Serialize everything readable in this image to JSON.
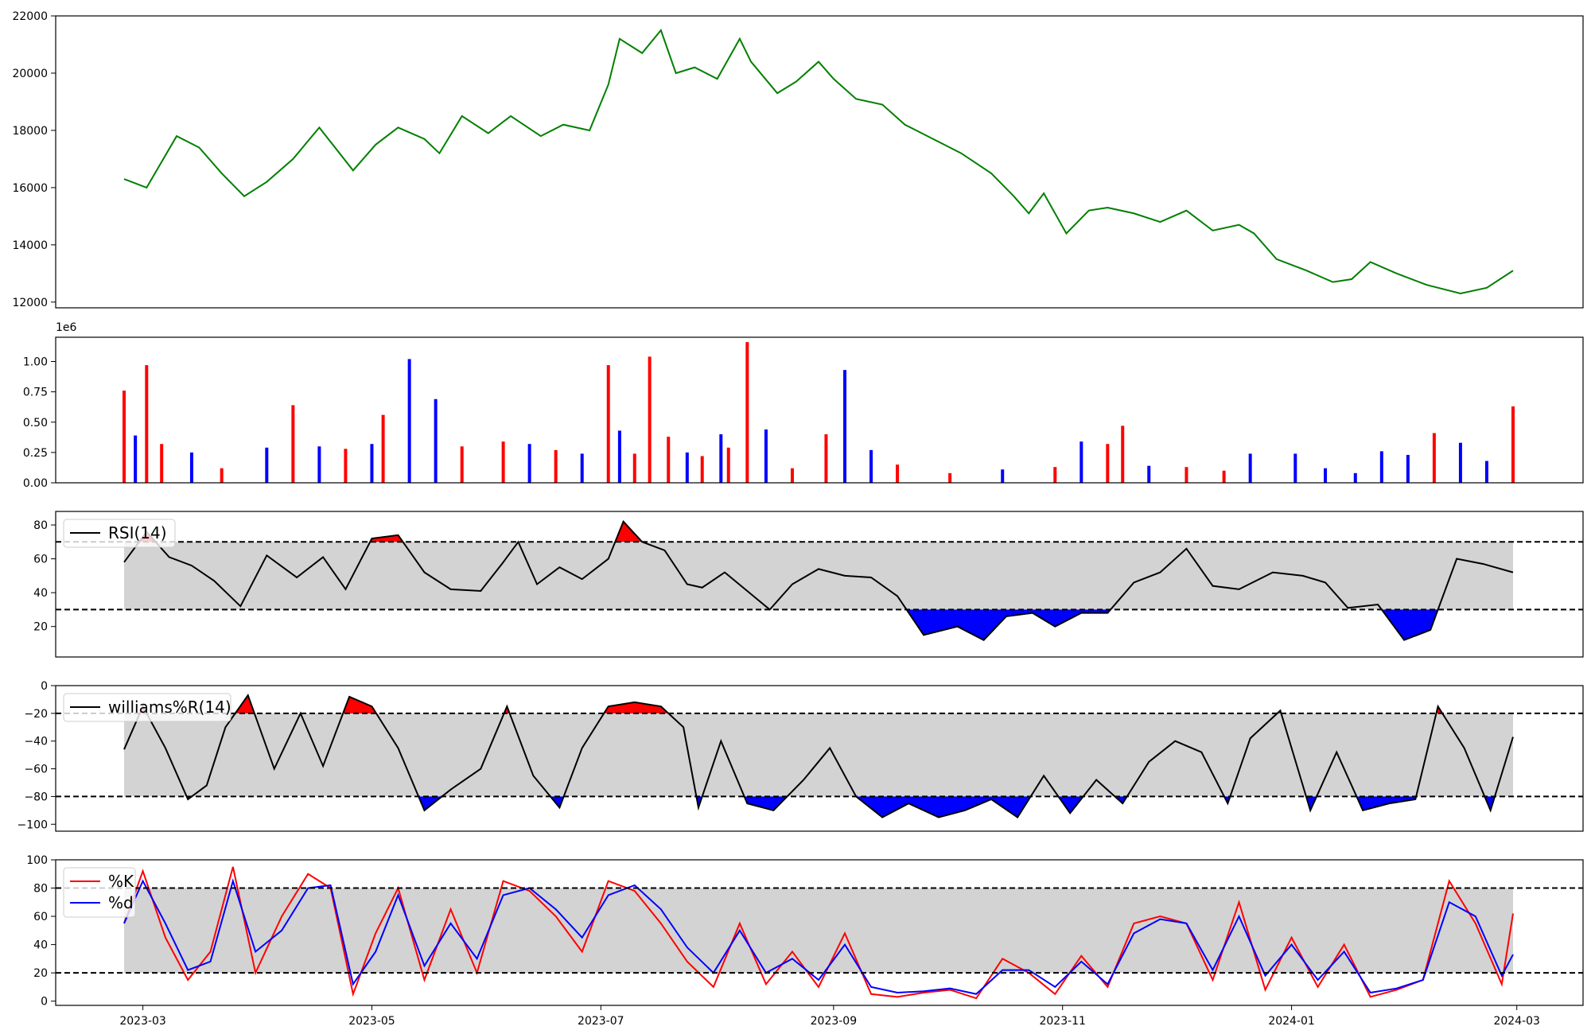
{
  "figure": {
    "background": "#ffffff"
  },
  "chart_data": [
    {
      "type": "line",
      "panel": "price",
      "color": "#008000",
      "ylim": [
        11800,
        22000
      ],
      "yticks": [
        12000,
        14000,
        16000,
        18000,
        20000,
        22000
      ],
      "ytick_labels": [
        "12000",
        "14000",
        "16000",
        "18000",
        "20000",
        "22000"
      ],
      "x_dates": [
        "2023-02-24",
        "2023-03-02",
        "2023-03-10",
        "2023-03-16",
        "2023-03-22",
        "2023-03-28",
        "2023-04-03",
        "2023-04-10",
        "2023-04-17",
        "2023-04-26",
        "2023-05-02",
        "2023-05-08",
        "2023-05-15",
        "2023-05-19",
        "2023-05-25",
        "2023-06-01",
        "2023-06-07",
        "2023-06-15",
        "2023-06-21",
        "2023-06-28",
        "2023-07-03",
        "2023-07-06",
        "2023-07-12",
        "2023-07-17",
        "2023-07-21",
        "2023-07-26",
        "2023-08-01",
        "2023-08-07",
        "2023-08-10",
        "2023-08-17",
        "2023-08-22",
        "2023-08-28",
        "2023-09-01",
        "2023-09-07",
        "2023-09-14",
        "2023-09-20",
        "2023-09-26",
        "2023-10-05",
        "2023-10-13",
        "2023-10-19",
        "2023-10-23",
        "2023-10-27",
        "2023-11-02",
        "2023-11-08",
        "2023-11-13",
        "2023-11-20",
        "2023-11-27",
        "2023-12-04",
        "2023-12-11",
        "2023-12-18",
        "2023-12-22",
        "2023-12-28",
        "2024-01-05",
        "2024-01-12",
        "2024-01-17",
        "2024-01-22",
        "2024-01-29",
        "2024-02-06",
        "2024-02-15",
        "2024-02-22",
        "2024-02-29"
      ],
      "y": [
        16300,
        16000,
        17800,
        17400,
        16500,
        15700,
        16200,
        17000,
        18100,
        16600,
        17500,
        18100,
        17700,
        17200,
        18500,
        17900,
        18500,
        17800,
        18200,
        18000,
        19600,
        21200,
        20700,
        21500,
        20000,
        20200,
        19800,
        21200,
        20400,
        19300,
        19700,
        20400,
        19800,
        19100,
        18900,
        18200,
        17800,
        17200,
        16500,
        15700,
        15100,
        15800,
        14400,
        15200,
        15300,
        15100,
        14800,
        15200,
        14500,
        14700,
        14400,
        13500,
        13100,
        12700,
        12800,
        13400,
        13000,
        12600,
        12300,
        12500,
        13100
      ]
    },
    {
      "type": "bar",
      "panel": "volume",
      "offset_label": "1e6",
      "ylim": [
        0,
        1.2
      ],
      "yticks": [
        0,
        0.25,
        0.5,
        0.75,
        1.0
      ],
      "ytick_labels": [
        "0.00",
        "0.25",
        "0.50",
        "0.75",
        "1.00"
      ],
      "colors": {
        "up": "#ff0000",
        "down": "#0000ff",
        "flat": "#000000"
      },
      "x_dates": [
        "2023-02-24",
        "2023-02-27",
        "2023-03-02",
        "2023-03-06",
        "2023-03-14",
        "2023-03-22",
        "2023-04-03",
        "2023-04-10",
        "2023-04-17",
        "2023-04-24",
        "2023-05-01",
        "2023-05-04",
        "2023-05-11",
        "2023-05-18",
        "2023-05-25",
        "2023-06-05",
        "2023-06-12",
        "2023-06-19",
        "2023-06-26",
        "2023-07-03",
        "2023-07-06",
        "2023-07-10",
        "2023-07-14",
        "2023-07-19",
        "2023-07-24",
        "2023-07-28",
        "2023-08-02",
        "2023-08-04",
        "2023-08-09",
        "2023-08-14",
        "2023-08-21",
        "2023-08-30",
        "2023-09-04",
        "2023-09-11",
        "2023-09-18",
        "2023-10-02",
        "2023-10-16",
        "2023-10-30",
        "2023-11-06",
        "2023-11-13",
        "2023-11-17",
        "2023-11-24",
        "2023-12-04",
        "2023-12-14",
        "2023-12-21",
        "2024-01-02",
        "2024-01-10",
        "2024-01-18",
        "2024-01-25",
        "2024-02-01",
        "2024-02-08",
        "2024-02-15",
        "2024-02-22",
        "2024-02-29"
      ],
      "values": [
        0.76,
        0.39,
        0.97,
        0.32,
        0.25,
        0.12,
        0.29,
        0.64,
        0.3,
        0.28,
        0.32,
        0.56,
        1.02,
        0.69,
        0.3,
        0.34,
        0.32,
        0.27,
        0.24,
        0.97,
        0.43,
        0.24,
        1.04,
        0.38,
        0.25,
        0.22,
        0.4,
        0.29,
        1.16,
        0.44,
        0.12,
        0.4,
        0.93,
        0.27,
        0.15,
        0.08,
        0.11,
        0.13,
        0.34,
        0.32,
        0.47,
        0.14,
        0.13,
        0.1,
        0.24,
        0.24,
        0.12,
        0.08,
        0.26,
        0.23,
        0.41,
        0.33,
        0.18,
        0.63
      ],
      "dir": [
        "up",
        "down",
        "up",
        "up",
        "down",
        "up",
        "down",
        "up",
        "down",
        "up",
        "down",
        "up",
        "down",
        "down",
        "up",
        "up",
        "down",
        "up",
        "down",
        "up",
        "down",
        "up",
        "up",
        "up",
        "down",
        "up",
        "down",
        "up",
        "up",
        "down",
        "up",
        "up",
        "down",
        "down",
        "up",
        "up",
        "down",
        "up",
        "down",
        "up",
        "up",
        "down",
        "up",
        "up",
        "down",
        "down",
        "down",
        "down",
        "down",
        "down",
        "up",
        "down",
        "down",
        "up"
      ]
    },
    {
      "type": "line",
      "panel": "rsi",
      "legend": "RSI(14)",
      "ylim": [
        2,
        88
      ],
      "yticks": [
        20,
        40,
        60,
        80
      ],
      "ytick_labels": [
        "20",
        "40",
        "60",
        "80"
      ],
      "band": [
        30,
        70
      ],
      "fills": {
        "over": "#ff0000",
        "under": "#0000ff",
        "band": "#d3d3d3"
      },
      "x_dates": [
        "2023-02-24",
        "2023-03-02",
        "2023-03-08",
        "2023-03-14",
        "2023-03-20",
        "2023-03-27",
        "2023-04-03",
        "2023-04-11",
        "2023-04-18",
        "2023-04-24",
        "2023-05-01",
        "2023-05-08",
        "2023-05-15",
        "2023-05-22",
        "2023-05-30",
        "2023-06-05",
        "2023-06-09",
        "2023-06-14",
        "2023-06-20",
        "2023-06-26",
        "2023-07-03",
        "2023-07-07",
        "2023-07-12",
        "2023-07-18",
        "2023-07-24",
        "2023-07-28",
        "2023-08-03",
        "2023-08-09",
        "2023-08-15",
        "2023-08-21",
        "2023-08-28",
        "2023-09-04",
        "2023-09-11",
        "2023-09-18",
        "2023-09-25",
        "2023-10-04",
        "2023-10-11",
        "2023-10-17",
        "2023-10-24",
        "2023-10-30",
        "2023-11-06",
        "2023-11-13",
        "2023-11-20",
        "2023-11-27",
        "2023-12-04",
        "2023-12-11",
        "2023-12-18",
        "2023-12-27",
        "2024-01-04",
        "2024-01-10",
        "2024-01-16",
        "2024-01-24",
        "2024-01-31",
        "2024-02-07",
        "2024-02-14",
        "2024-02-21",
        "2024-02-29"
      ],
      "y": [
        58,
        76,
        61,
        56,
        47,
        32,
        62,
        49,
        61,
        42,
        72,
        74,
        52,
        42,
        41,
        58,
        70,
        45,
        55,
        48,
        60,
        82,
        70,
        65,
        45,
        43,
        52,
        41,
        30,
        45,
        54,
        50,
        49,
        38,
        15,
        20,
        12,
        26,
        28,
        20,
        28,
        28,
        46,
        52,
        66,
        44,
        42,
        52,
        50,
        46,
        31,
        33,
        12,
        18,
        60,
        57,
        52
      ]
    },
    {
      "type": "line",
      "panel": "williams",
      "legend": "williams%R(14)",
      "ylim": [
        -105,
        0
      ],
      "yticks": [
        -100,
        -80,
        -60,
        -40,
        -20,
        0
      ],
      "ytick_labels": [
        "−100",
        "−80",
        "−60",
        "−40",
        "−20",
        "0"
      ],
      "band": [
        -80,
        -20
      ],
      "fills": {
        "over": "#ff0000",
        "under": "#0000ff",
        "band": "#d3d3d3"
      },
      "x_dates": [
        "2023-02-24",
        "2023-03-01",
        "2023-03-07",
        "2023-03-13",
        "2023-03-18",
        "2023-03-23",
        "2023-03-29",
        "2023-04-05",
        "2023-04-12",
        "2023-04-18",
        "2023-04-25",
        "2023-05-01",
        "2023-05-08",
        "2023-05-15",
        "2023-05-22",
        "2023-05-30",
        "2023-06-06",
        "2023-06-13",
        "2023-06-20",
        "2023-06-26",
        "2023-07-03",
        "2023-07-10",
        "2023-07-17",
        "2023-07-23",
        "2023-07-27",
        "2023-08-02",
        "2023-08-09",
        "2023-08-16",
        "2023-08-24",
        "2023-08-31",
        "2023-09-07",
        "2023-09-14",
        "2023-09-21",
        "2023-09-29",
        "2023-10-06",
        "2023-10-13",
        "2023-10-20",
        "2023-10-27",
        "2023-11-03",
        "2023-11-10",
        "2023-11-17",
        "2023-11-24",
        "2023-12-01",
        "2023-12-08",
        "2023-12-15",
        "2023-12-21",
        "2023-12-29",
        "2024-01-06",
        "2024-01-13",
        "2024-01-20",
        "2024-01-27",
        "2024-02-03",
        "2024-02-09",
        "2024-02-16",
        "2024-02-23",
        "2024-02-29"
      ],
      "y": [
        -46,
        -15,
        -45,
        -82,
        -72,
        -30,
        -7,
        -60,
        -20,
        -58,
        -8,
        -15,
        -45,
        -90,
        -75,
        -60,
        -15,
        -65,
        -88,
        -45,
        -15,
        -12,
        -15,
        -30,
        -88,
        -40,
        -85,
        -90,
        -68,
        -45,
        -80,
        -95,
        -85,
        -95,
        -90,
        -82,
        -95,
        -65,
        -92,
        -68,
        -85,
        -55,
        -40,
        -48,
        -85,
        -38,
        -18,
        -90,
        -48,
        -90,
        -85,
        -82,
        -15,
        -45,
        -90,
        -37
      ]
    },
    {
      "type": "line",
      "panel": "stochastic",
      "ylim": [
        -3,
        100
      ],
      "yticks": [
        0,
        20,
        40,
        60,
        80,
        100
      ],
      "ytick_labels": [
        "0",
        "20",
        "40",
        "60",
        "80",
        "100"
      ],
      "band": [
        20,
        80
      ],
      "band_fill": "#d3d3d3",
      "x_dates": [
        "2023-02-24",
        "2023-03-01",
        "2023-03-07",
        "2023-03-13",
        "2023-03-19",
        "2023-03-25",
        "2023-03-31",
        "2023-04-07",
        "2023-04-14",
        "2023-04-20",
        "2023-04-26",
        "2023-05-02",
        "2023-05-08",
        "2023-05-15",
        "2023-05-22",
        "2023-05-29",
        "2023-06-05",
        "2023-06-12",
        "2023-06-19",
        "2023-06-26",
        "2023-07-03",
        "2023-07-10",
        "2023-07-17",
        "2023-07-24",
        "2023-07-31",
        "2023-08-07",
        "2023-08-14",
        "2023-08-21",
        "2023-08-28",
        "2023-09-04",
        "2023-09-11",
        "2023-09-18",
        "2023-09-25",
        "2023-10-02",
        "2023-10-09",
        "2023-10-16",
        "2023-10-23",
        "2023-10-30",
        "2023-11-06",
        "2023-11-13",
        "2023-11-20",
        "2023-11-27",
        "2023-12-04",
        "2023-12-11",
        "2023-12-18",
        "2023-12-25",
        "2024-01-01",
        "2024-01-08",
        "2024-01-15",
        "2024-01-22",
        "2024-01-29",
        "2024-02-05",
        "2024-02-12",
        "2024-02-19",
        "2024-02-26",
        "2024-02-29"
      ],
      "series": [
        {
          "name": "%K",
          "color": "#ff0000",
          "y": [
            55,
            92,
            45,
            15,
            35,
            95,
            20,
            60,
            90,
            80,
            5,
            48,
            80,
            15,
            65,
            20,
            85,
            78,
            60,
            35,
            85,
            78,
            55,
            28,
            10,
            55,
            12,
            35,
            10,
            48,
            5,
            3,
            6,
            8,
            2,
            30,
            20,
            5,
            32,
            10,
            55,
            60,
            55,
            15,
            70,
            8,
            45,
            10,
            40,
            3,
            8,
            15,
            85,
            55,
            12,
            62
          ]
        },
        {
          "name": "%d",
          "color": "#0000ff",
          "y": [
            55,
            85,
            55,
            22,
            28,
            85,
            35,
            50,
            80,
            82,
            12,
            35,
            75,
            25,
            55,
            30,
            75,
            80,
            65,
            45,
            75,
            82,
            65,
            38,
            20,
            50,
            20,
            30,
            15,
            40,
            10,
            6,
            7,
            9,
            5,
            22,
            22,
            10,
            28,
            12,
            48,
            58,
            55,
            22,
            60,
            18,
            40,
            15,
            35,
            6,
            9,
            15,
            70,
            60,
            18,
            33
          ]
        }
      ]
    }
  ],
  "x_axis": {
    "ticks": [
      "2023-03-01",
      "2023-05-01",
      "2023-07-01",
      "2023-09-01",
      "2023-11-01",
      "2024-01-01",
      "2024-03-01"
    ],
    "labels": [
      "2023-03",
      "2023-05",
      "2023-07",
      "2023-09",
      "2023-11",
      "2024-01",
      "2024-03"
    ]
  }
}
